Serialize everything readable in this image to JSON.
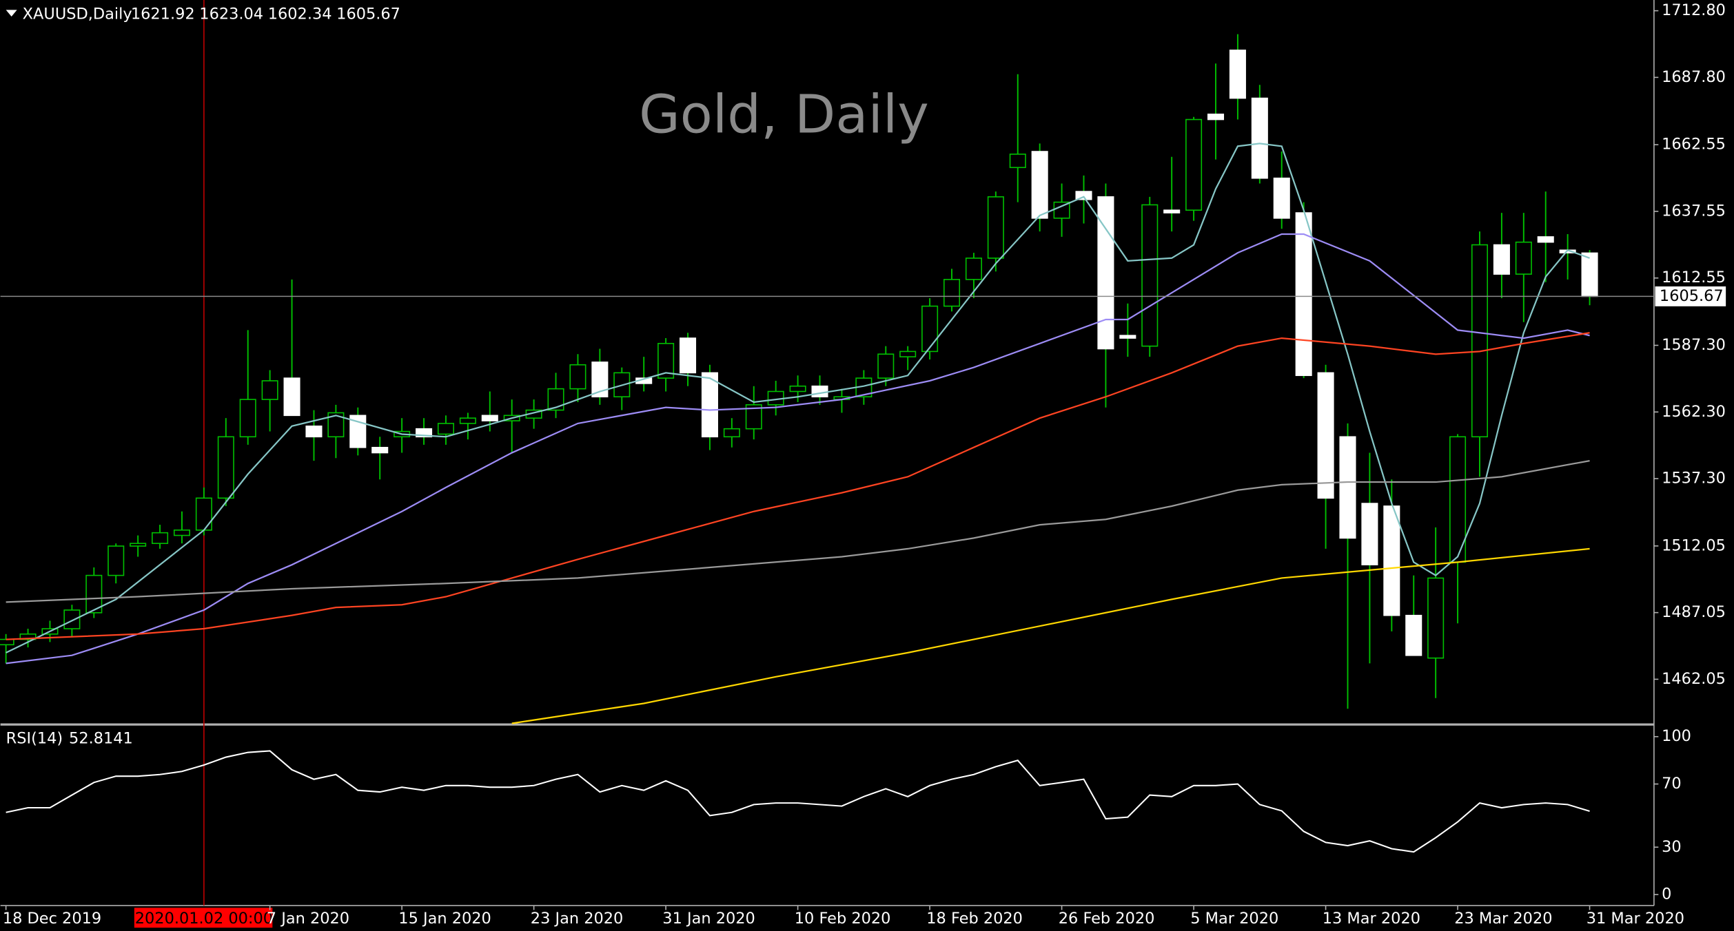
{
  "chart_data": [
    {
      "type": "candlestick",
      "symbol": "XAUUSD,Daily",
      "watermark": "Gold, Daily",
      "crosshair": {
        "x": 9,
        "label": "2020.01.02 00:00"
      },
      "categories": [
        "18 Dec 2019",
        null,
        null,
        null,
        null,
        null,
        null,
        null,
        null,
        null,
        null,
        null,
        "7 Jan 2020",
        null,
        null,
        null,
        null,
        null,
        "15 Jan 2020",
        null,
        null,
        null,
        null,
        null,
        "23 Jan 2020",
        null,
        null,
        null,
        null,
        null,
        "31 Jan 2020",
        null,
        null,
        null,
        null,
        null,
        "10 Feb 2020",
        null,
        null,
        null,
        null,
        null,
        "18 Feb 2020",
        null,
        null,
        null,
        null,
        null,
        "26 Feb 2020",
        null,
        null,
        null,
        null,
        null,
        "5 Mar 2020",
        null,
        null,
        null,
        null,
        null,
        "13 Mar 2020",
        null,
        null,
        null,
        null,
        null,
        "23 Mar 2020",
        null,
        null,
        null,
        null,
        null,
        "31 Mar 2020"
      ],
      "open": [
        1475,
        1477,
        1479,
        1481,
        1487,
        1501,
        1512,
        1513,
        1516,
        1518,
        1530,
        1553,
        1567,
        1575,
        1557,
        1553,
        1561,
        1549,
        1553,
        1556,
        1554,
        1558,
        1561,
        1559,
        1560,
        1563,
        1571,
        1581,
        1568,
        1575,
        1575,
        1590,
        1577,
        1553,
        1556,
        1565,
        1570,
        1572,
        1567,
        1568,
        1575,
        1583,
        1585,
        1602,
        1612,
        1620,
        1654,
        1660,
        1635,
        1645,
        1643,
        1591,
        1587,
        1638,
        1638,
        1674,
        1698,
        1680,
        1650,
        1637,
        1577,
        1553,
        1528,
        1527,
        1486,
        1470,
        1506,
        1553,
        1625,
        1614,
        1628,
        1623,
        1621.92
      ],
      "high": [
        1479,
        1481,
        1484,
        1490,
        1504,
        1513,
        1516,
        1520,
        1525,
        1534,
        1560,
        1593,
        1578,
        1612,
        1563,
        1565,
        1564,
        1553,
        1560,
        1560,
        1561,
        1562,
        1570,
        1567,
        1567,
        1577,
        1584,
        1586,
        1579,
        1583,
        1590,
        1592,
        1580,
        1560,
        1572,
        1574,
        1576,
        1576,
        1571,
        1578,
        1587,
        1587,
        1605,
        1616,
        1622,
        1645,
        1689,
        1663,
        1648,
        1651,
        1648,
        1603,
        1643,
        1658,
        1673,
        1693,
        1704,
        1685,
        1660,
        1641,
        1580,
        1558,
        1547,
        1537,
        1501,
        1519,
        1554,
        1630,
        1637,
        1637,
        1645,
        1629,
        1623.04
      ],
      "low": [
        1468,
        1474,
        1476,
        1478,
        1485,
        1498,
        1508,
        1511,
        1513,
        1516,
        1527,
        1550,
        1555,
        1561,
        1544,
        1545,
        1546,
        1537,
        1547,
        1550,
        1550,
        1552,
        1555,
        1547,
        1556,
        1560,
        1566,
        1565,
        1563,
        1570,
        1570,
        1572,
        1548,
        1549,
        1552,
        1561,
        1566,
        1565,
        1562,
        1565,
        1572,
        1578,
        1582,
        1600,
        1605,
        1615,
        1641,
        1630,
        1628,
        1633,
        1564,
        1583,
        1583,
        1630,
        1634,
        1657,
        1672,
        1648,
        1631,
        1575,
        1511,
        1451,
        1468,
        1480,
        1471,
        1455,
        1483,
        1538,
        1605,
        1596,
        1611,
        1612,
        1602.34
      ],
      "close": [
        1477,
        1479,
        1481,
        1488,
        1501,
        1512,
        1513,
        1517,
        1518,
        1530,
        1553,
        1567,
        1574,
        1561,
        1553,
        1562,
        1549,
        1547,
        1555,
        1553,
        1558,
        1560,
        1559,
        1561,
        1563,
        1571,
        1580,
        1568,
        1577,
        1573,
        1588,
        1577,
        1553,
        1556,
        1565,
        1570,
        1572,
        1568,
        1568,
        1575,
        1584,
        1585,
        1602,
        1612,
        1620,
        1643,
        1659,
        1635,
        1641,
        1642,
        1586,
        1590,
        1640,
        1637,
        1672,
        1672,
        1680,
        1650,
        1635,
        1576,
        1530,
        1515,
        1505,
        1486,
        1471,
        1500,
        1553,
        1625,
        1614,
        1626,
        1626,
        1622,
        1605.67
      ],
      "up_color": "#00c000",
      "down_color": "#ffffff",
      "series": [
        {
          "color": "#86c6c6",
          "x": [
            0,
            5,
            9,
            11,
            13,
            15,
            18,
            20,
            23,
            25,
            27,
            30,
            32,
            34,
            36,
            39,
            41,
            43,
            45,
            47,
            49,
            51,
            53,
            54,
            55,
            56,
            57,
            58,
            59,
            61,
            62,
            63,
            64,
            65,
            66,
            67,
            68,
            69,
            70,
            71,
            72
          ],
          "values": [
            1472,
            1492,
            1518,
            1539,
            1557,
            1561,
            1554,
            1553,
            1560,
            1564,
            1570,
            1577,
            1575,
            1566,
            1568,
            1572,
            1576,
            1597,
            1618,
            1636,
            1643,
            1619,
            1620,
            1625,
            1646,
            1662,
            1663,
            1662,
            1638,
            1584,
            1555,
            1528,
            1506,
            1501,
            1508,
            1528,
            1561,
            1592,
            1613,
            1623,
            1620
          ]
        },
        {
          "color": "#9d8cf5",
          "x": [
            0,
            3,
            6,
            9,
            11,
            13,
            15,
            18,
            20,
            23,
            26,
            30,
            32,
            35,
            38,
            42,
            44,
            47,
            50,
            51,
            53,
            56,
            58,
            59,
            62,
            64,
            66,
            68,
            69,
            71,
            72
          ],
          "values": [
            1468,
            1471,
            1479,
            1488,
            1498,
            1505,
            1513,
            1525,
            1534,
            1547,
            1558,
            1564,
            1563,
            1564,
            1567,
            1574,
            1579,
            1588,
            1597,
            1597,
            1607,
            1622,
            1629,
            1629,
            1619,
            1606,
            1593,
            1591,
            1590,
            1593,
            1591
          ]
        },
        {
          "color": "#ff4422",
          "x": [
            0,
            6,
            9,
            13,
            15,
            18,
            20,
            23,
            26,
            30,
            34,
            38,
            41,
            44,
            47,
            50,
            53,
            56,
            58,
            62,
            65,
            67,
            69,
            72
          ],
          "values": [
            1477,
            1479,
            1481,
            1486,
            1489,
            1490,
            1493,
            1500,
            1507,
            1516,
            1525,
            1532,
            1538,
            1549,
            1560,
            1568,
            1577,
            1587,
            1590,
            1587,
            1584,
            1585,
            1588,
            1592
          ]
        },
        {
          "color": "#9a9a9a",
          "x": [
            0,
            6,
            13,
            20,
            26,
            32,
            38,
            41,
            44,
            47,
            50,
            53,
            56,
            58,
            61,
            65,
            68,
            72
          ],
          "values": [
            1491,
            1493,
            1496,
            1498,
            1500,
            1504,
            1508,
            1511,
            1515,
            1520,
            1522,
            1527,
            1533,
            1535,
            1536,
            1536,
            1538,
            1544
          ]
        },
        {
          "color": "#ffd700",
          "x": [
            23,
            29,
            35,
            41,
            47,
            53,
            58,
            62,
            66,
            72
          ],
          "values": [
            1445.5,
            1453,
            1463,
            1472,
            1482,
            1492,
            1500,
            1503,
            1506,
            1511
          ]
        }
      ],
      "ylim": [
        1445.5,
        1716
      ],
      "yticks": [
        {
          "value": 1712.8,
          "label": "1712.80"
        },
        {
          "value": 1687.8,
          "label": "1687.80"
        },
        1662.55,
        1637.55,
        1612.55,
        {
          "value": 1587.3,
          "label": "1587.30"
        },
        {
          "value": 1562.3,
          "label": "1562.30"
        },
        {
          "value": 1537.3,
          "label": "1537.30"
        },
        1512.05,
        1487.05,
        1462.05
      ]
    },
    {
      "type": "line",
      "title": "RSI(14)",
      "color": "#ffffff",
      "values": [
        52,
        55,
        55,
        63,
        71,
        75,
        75,
        76,
        78,
        82,
        87,
        90,
        91,
        79,
        73,
        76,
        66,
        65,
        68,
        66,
        69,
        69,
        68,
        68,
        69,
        73,
        76,
        65,
        69,
        66,
        72,
        66,
        50,
        52,
        57,
        58,
        58,
        57,
        56,
        62,
        67,
        62,
        69,
        73,
        76,
        81,
        85,
        69,
        71,
        73,
        48,
        49,
        63,
        62,
        69,
        69,
        70,
        57,
        53,
        40,
        33,
        31,
        34,
        29,
        27,
        36,
        46,
        58,
        55,
        57,
        58,
        57,
        52.8141
      ],
      "ylim": [
        -7,
        107
      ],
      "yticks": [
        100,
        70,
        30,
        0
      ]
    }
  ]
}
